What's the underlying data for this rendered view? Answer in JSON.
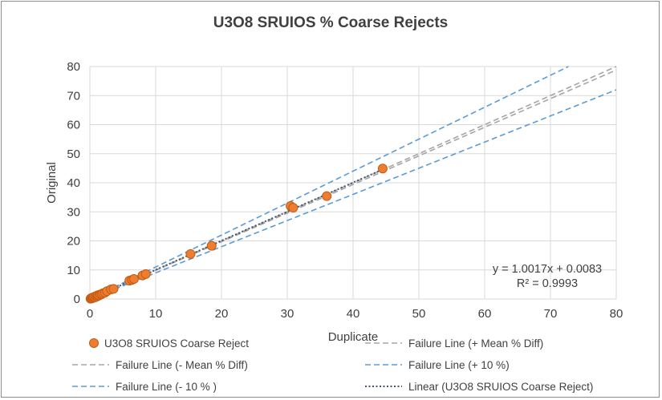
{
  "chart_data": {
    "type": "scatter",
    "title": "U3O8 SRUIOS %  Coarse Rejects",
    "xlabel": "Duplicate",
    "ylabel": "Original",
    "xlim": [
      0,
      80
    ],
    "ylim": [
      0,
      80
    ],
    "xticks": [
      0,
      10,
      20,
      30,
      40,
      50,
      60,
      70,
      80
    ],
    "yticks": [
      0,
      10,
      20,
      30,
      40,
      50,
      60,
      70,
      80
    ],
    "grid": true,
    "legend_position": "bottom",
    "series": [
      {
        "name": "U3O8 SRUIOS Coarse Reject",
        "kind": "scatter",
        "color": "#ED7D31",
        "points": [
          [
            0.1,
            0.1
          ],
          [
            0.2,
            0.3
          ],
          [
            0.3,
            0.2
          ],
          [
            0.4,
            0.5
          ],
          [
            0.5,
            0.4
          ],
          [
            0.6,
            0.7
          ],
          [
            0.8,
            0.6
          ],
          [
            0.9,
            1.0
          ],
          [
            1.1,
            0.9
          ],
          [
            1.2,
            1.3
          ],
          [
            1.4,
            1.2
          ],
          [
            1.6,
            1.6
          ],
          [
            1.8,
            1.7
          ],
          [
            2.0,
            2.0
          ],
          [
            2.3,
            2.2
          ],
          [
            2.6,
            2.7
          ],
          [
            3.2,
            3.3
          ],
          [
            3.6,
            3.5
          ],
          [
            6.0,
            6.3
          ],
          [
            6.4,
            6.6
          ],
          [
            6.7,
            6.9
          ],
          [
            8.0,
            8.1
          ],
          [
            8.5,
            8.6
          ],
          [
            15.3,
            15.5
          ],
          [
            18.5,
            18.3
          ],
          [
            30.5,
            32.0
          ],
          [
            30.9,
            31.4
          ],
          [
            36.0,
            35.4
          ],
          [
            44.5,
            44.9
          ]
        ]
      },
      {
        "name": "Failure Line (+ Mean % Diff)",
        "kind": "line",
        "style": "dashed",
        "color": "#A5A5A5",
        "slope": 1.0,
        "x_start": 0,
        "x_end": 80
      },
      {
        "name": "Failure Line (- Mean % Diff)",
        "kind": "line",
        "style": "dashed",
        "color": "#A5A5A5",
        "slope": 0.985,
        "x_start": 0,
        "x_end": 80
      },
      {
        "name": "Failure Line (+ 10 %)",
        "kind": "line",
        "style": "dashed",
        "color": "#5B9BD5",
        "slope": 1.1,
        "x_start": 0,
        "x_end": 80
      },
      {
        "name": "Failure Line (- 10 % )",
        "kind": "line",
        "style": "dashed",
        "color": "#5B9BD5",
        "slope": 0.9,
        "x_start": 0,
        "x_end": 80
      },
      {
        "name": "Linear (U3O8 SRUIOS Coarse Reject)",
        "kind": "trendline",
        "style": "dotted",
        "color": "#44546A",
        "slope": 1.0017,
        "intercept": 0.0083,
        "x_start": 0,
        "x_end": 44.5
      }
    ],
    "annotations": {
      "equation": "y = 1.0017x + 0.0083",
      "r_squared": "R² = 0.9993"
    }
  }
}
